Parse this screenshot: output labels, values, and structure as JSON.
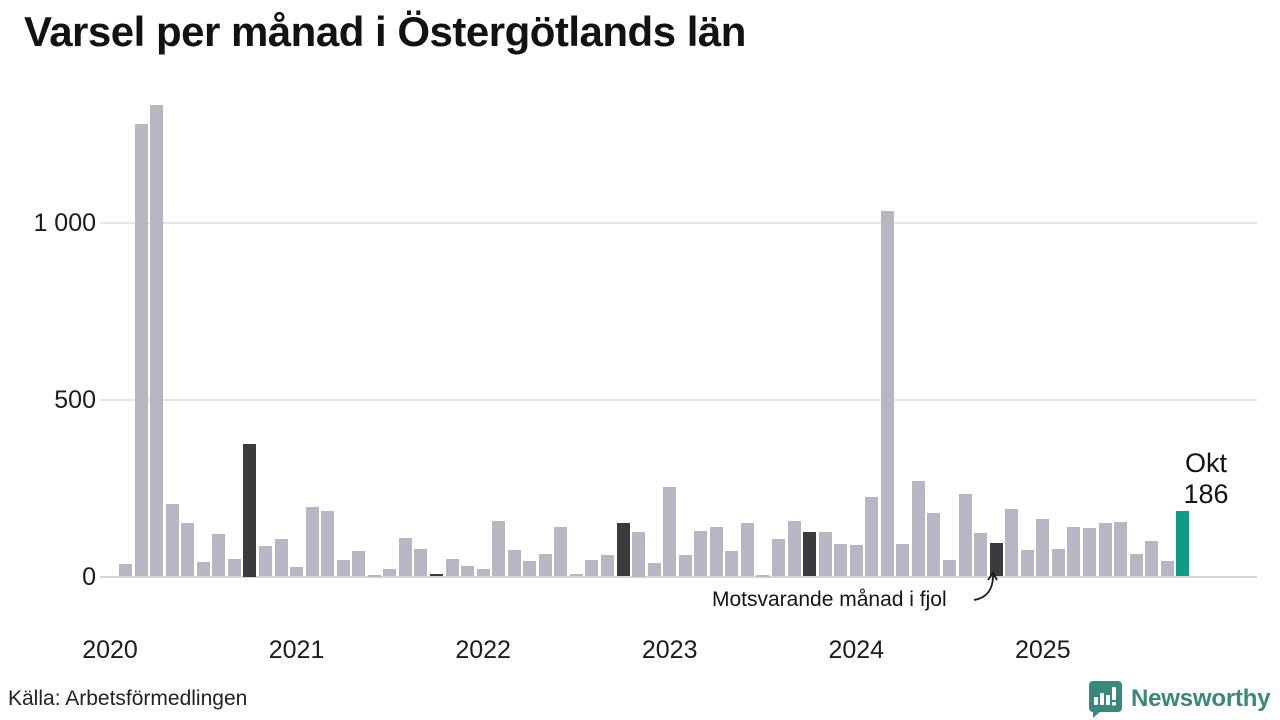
{
  "title": "Varsel per månad i Östergötlands län",
  "source": "Källa: Arbetsförmedlingen",
  "annotation": {
    "text": "Motsvarande månad i fjol"
  },
  "current_label": {
    "month": "Okt",
    "value": "186"
  },
  "logo": {
    "text": "Newsworthy"
  },
  "colors": {
    "bar": "#b9b6c3",
    "bar_dark": "#3b3a3c",
    "bar_current": "#129a84",
    "gridline": "#e6e5ea",
    "baseline": "#d5d4d9",
    "logo_teal": "#38897b",
    "text": "#1a1a1a"
  },
  "chart_data": {
    "type": "bar",
    "title": "Varsel per månad i Östergötlands län",
    "xlabel": "",
    "ylabel": "",
    "ylim": [
      0,
      1400
    ],
    "grid": true,
    "yticks": [
      {
        "value": 0,
        "label": "0"
      },
      {
        "value": 500,
        "label": "500"
      },
      {
        "value": 1000,
        "label": "1 000"
      }
    ],
    "year_labels": [
      "2020",
      "2021",
      "2022",
      "2023",
      "2024",
      "2025"
    ],
    "x": [
      "jan 2020",
      "feb 2020",
      "mar 2020",
      "apr 2020",
      "maj 2020",
      "jun 2020",
      "jul 2020",
      "aug 2020",
      "sep 2020",
      "okt 2020",
      "nov 2020",
      "dec 2020",
      "jan 2021",
      "feb 2021",
      "mar 2021",
      "apr 2021",
      "maj 2021",
      "jun 2021",
      "jul 2021",
      "aug 2021",
      "sep 2021",
      "okt 2021",
      "nov 2021",
      "dec 2021",
      "jan 2022",
      "feb 2022",
      "mar 2022",
      "apr 2022",
      "maj 2022",
      "jun 2022",
      "jul 2022",
      "aug 2022",
      "sep 2022",
      "okt 2022",
      "nov 2022",
      "dec 2022",
      "jan 2023",
      "feb 2023",
      "mar 2023",
      "apr 2023",
      "maj 2023",
      "jun 2023",
      "jul 2023",
      "aug 2023",
      "sep 2023",
      "okt 2023",
      "nov 2023",
      "dec 2023",
      "jan 2024",
      "feb 2024",
      "mar 2024",
      "apr 2024",
      "maj 2024",
      "jun 2024",
      "jul 2024",
      "aug 2024",
      "sep 2024",
      "okt 2024",
      "nov 2024",
      "dec 2024",
      "jan 2025",
      "feb 2025",
      "mar 2025",
      "apr 2025",
      "maj 2025",
      "jun 2025",
      "jul 2025",
      "aug 2025",
      "sep 2025",
      "okt 2025"
    ],
    "values": [
      0,
      34,
      1280,
      1335,
      204,
      150,
      42,
      120,
      50,
      375,
      85,
      105,
      28,
      196,
      185,
      48,
      73,
      5,
      20,
      110,
      79,
      7,
      50,
      31,
      21,
      156,
      76,
      44,
      65,
      141,
      8,
      46,
      62,
      150,
      125,
      39,
      253,
      60,
      128,
      140,
      72,
      150,
      5,
      105,
      158,
      126,
      126,
      93,
      88,
      226,
      1035,
      91,
      269,
      179,
      46,
      234,
      122,
      96,
      191,
      76,
      164,
      79,
      140,
      138,
      150,
      155,
      65,
      100,
      44,
      186
    ],
    "dark_month_indices": [
      9,
      21,
      33,
      45,
      57
    ],
    "current_index": 69,
    "annotation_text": "Motsvarande månad i fjol",
    "current_point_label": "Okt 186"
  }
}
